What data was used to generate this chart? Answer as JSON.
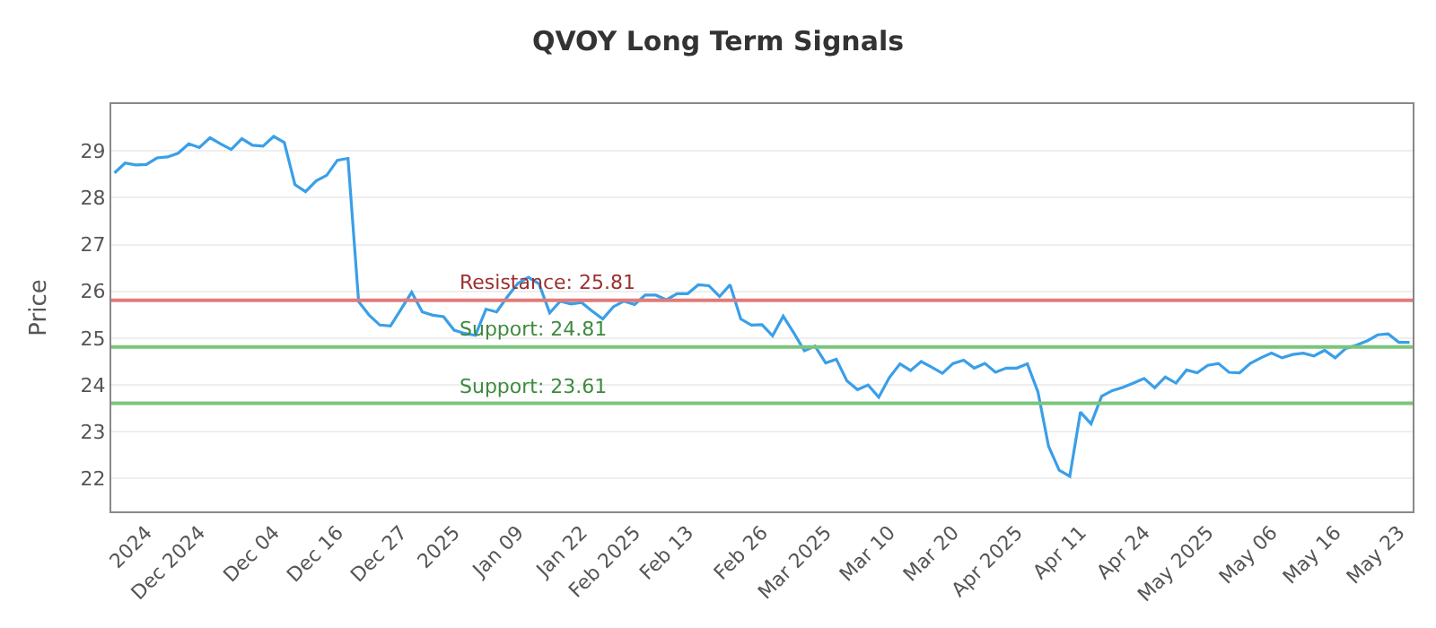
{
  "chart_data": {
    "type": "line",
    "title": "QVOY Long Term Signals",
    "ylabel": "Price",
    "categories": [
      null,
      null,
      null,
      "2024",
      null,
      null,
      null,
      null,
      "Dec 2024",
      null,
      null,
      null,
      null,
      null,
      null,
      "Dec 04",
      null,
      null,
      null,
      null,
      null,
      "Dec 16",
      null,
      null,
      null,
      null,
      null,
      "Dec 27",
      null,
      null,
      null,
      null,
      "2025",
      null,
      null,
      null,
      null,
      null,
      "Jan 09",
      null,
      null,
      null,
      null,
      null,
      "Jan 22",
      null,
      null,
      null,
      null,
      "Feb 2025",
      null,
      null,
      null,
      null,
      "Feb 13",
      null,
      null,
      null,
      null,
      null,
      null,
      "Feb 26",
      null,
      null,
      null,
      null,
      null,
      "Mar 2025",
      null,
      null,
      null,
      null,
      null,
      "Mar 10",
      null,
      null,
      null,
      null,
      null,
      "Mar 20",
      null,
      null,
      null,
      null,
      null,
      "Apr 2025",
      null,
      null,
      null,
      null,
      null,
      "Apr 11",
      null,
      null,
      null,
      null,
      null,
      "Apr 24",
      null,
      null,
      null,
      null,
      null,
      "May 2025",
      null,
      null,
      null,
      null,
      null,
      "May 06",
      null,
      null,
      null,
      null,
      null,
      "May 16",
      null,
      null,
      null,
      null,
      null,
      "May 23",
      null
    ],
    "series": [
      {
        "color": "#3a9fe8",
        "values": [
          28.53,
          28.74,
          28.7,
          28.71,
          28.85,
          28.87,
          28.95,
          29.15,
          29.07,
          29.28,
          29.15,
          29.03,
          29.26,
          29.12,
          29.1,
          29.31,
          29.18,
          28.28,
          28.13,
          28.36,
          28.48,
          28.8,
          28.84,
          25.78,
          25.49,
          25.28,
          25.26,
          25.62,
          25.98,
          25.56,
          25.49,
          25.46,
          25.17,
          25.1,
          25.06,
          25.62,
          25.56,
          25.88,
          26.17,
          26.3,
          26.16,
          25.54,
          25.79,
          25.73,
          25.76,
          25.58,
          25.41,
          25.67,
          25.79,
          25.72,
          25.92,
          25.92,
          25.82,
          25.95,
          25.95,
          26.14,
          26.12,
          25.89,
          26.14,
          25.41,
          25.28,
          25.29,
          25.05,
          25.47,
          25.11,
          24.73,
          24.83,
          24.47,
          24.55,
          24.09,
          23.9,
          24.0,
          23.74,
          24.16,
          24.45,
          24.31,
          24.5,
          24.38,
          24.25,
          24.46,
          24.53,
          24.36,
          24.46,
          24.27,
          24.36,
          24.36,
          24.45,
          23.85,
          22.69,
          22.18,
          22.05,
          23.42,
          23.17,
          23.76,
          23.88,
          23.95,
          24.04,
          24.14,
          23.94,
          24.17,
          24.04,
          24.32,
          24.26,
          24.42,
          24.46,
          24.27,
          24.26,
          24.46,
          24.58,
          24.68,
          24.58,
          24.65,
          24.68,
          24.62,
          24.74,
          24.58,
          24.78,
          24.85,
          24.94,
          25.07,
          25.09,
          24.91,
          24.91
        ]
      }
    ],
    "ylim": [
      21.3,
      30.0
    ],
    "yticks": [
      22,
      23,
      24,
      25,
      26,
      27,
      28,
      29
    ],
    "grid": "y",
    "marker": "none",
    "line_style": "solid",
    "ref_lines": [
      {
        "axis": "y",
        "value": 25.81,
        "label": "Resistance: 25.81",
        "color": "#e07b7b"
      },
      {
        "axis": "y",
        "value": 24.81,
        "label": "Support: 24.81",
        "color": "#7cc47c"
      },
      {
        "axis": "y",
        "value": 23.61,
        "label": "Support: 23.61",
        "color": "#7cc47c"
      }
    ]
  }
}
